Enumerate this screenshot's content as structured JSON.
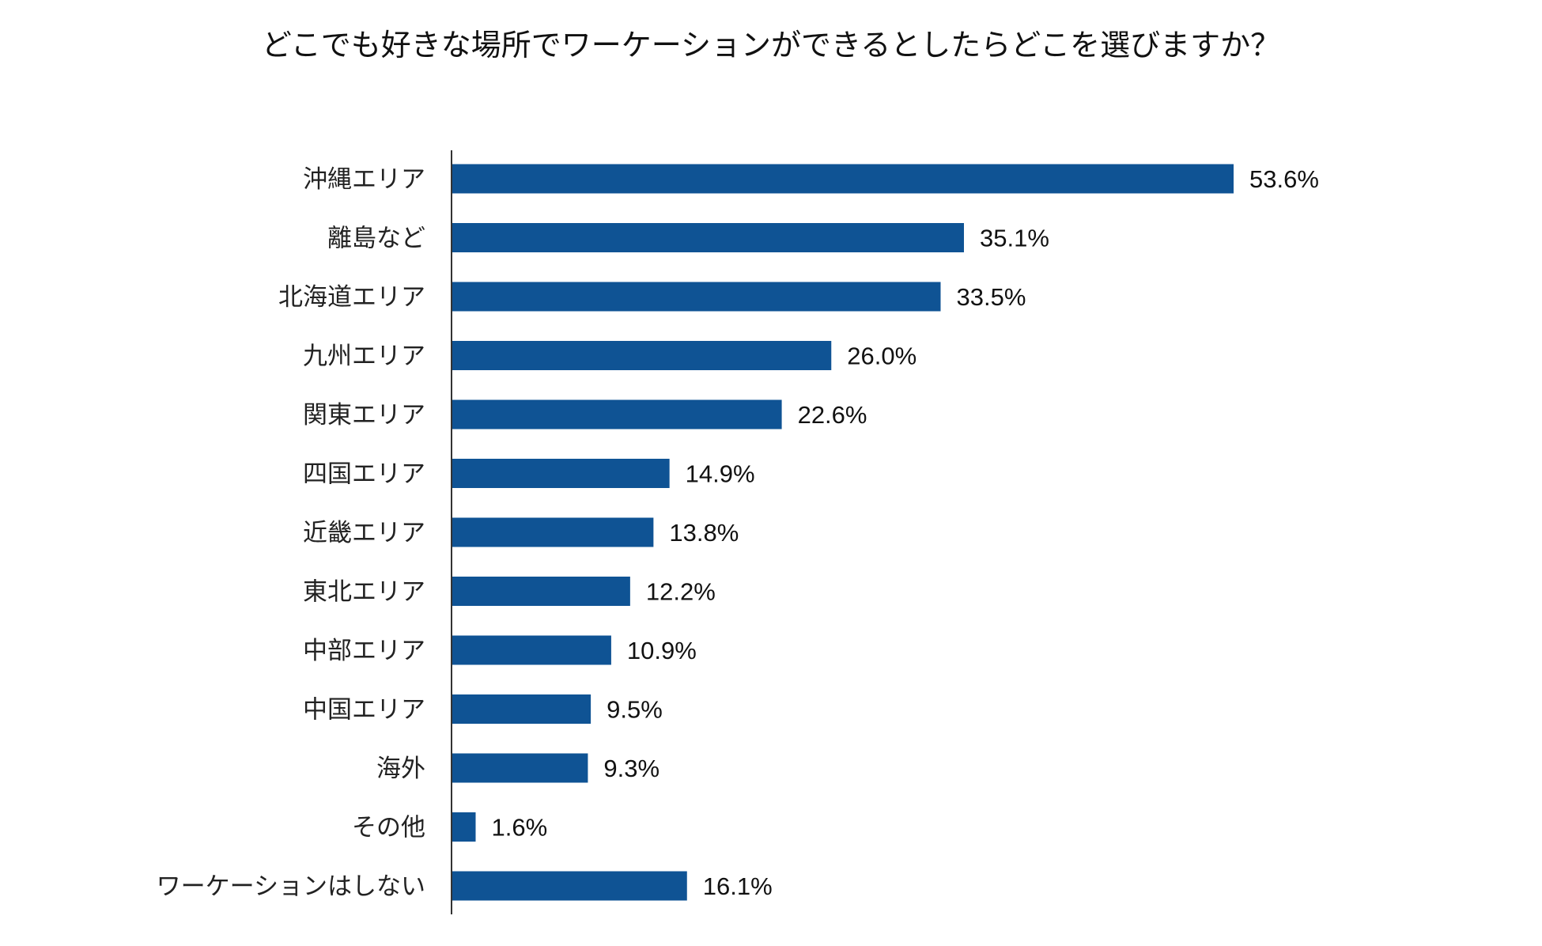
{
  "chart_data": {
    "type": "bar",
    "orientation": "horizontal",
    "title": "どこでも好きな場所でワーケーションができるとしたらどこを選びますか？",
    "xlabel": "",
    "ylabel": "",
    "unit": "%",
    "grid": false,
    "legend": "none",
    "bar_color": "#0f5394",
    "categories": [
      "沖縄エリア",
      "離島など",
      "北海道エリア",
      "九州エリア",
      "関東エリア",
      "四国エリア",
      "近畿エリア",
      "東北エリア",
      "中部エリア",
      "中国エリア",
      "海外",
      "その他",
      "ワーケーションはしない"
    ],
    "values": [
      53.6,
      35.1,
      33.5,
      26.0,
      22.6,
      14.9,
      13.8,
      12.2,
      10.9,
      9.5,
      9.3,
      1.6,
      16.1
    ],
    "value_labels": [
      "53.6%",
      "35.1%",
      "33.5%",
      "26.0%",
      "22.6%",
      "14.9%",
      "13.8%",
      "12.2%",
      "10.9%",
      "9.5%",
      "9.3%",
      "1.6%",
      "16.1%"
    ]
  }
}
